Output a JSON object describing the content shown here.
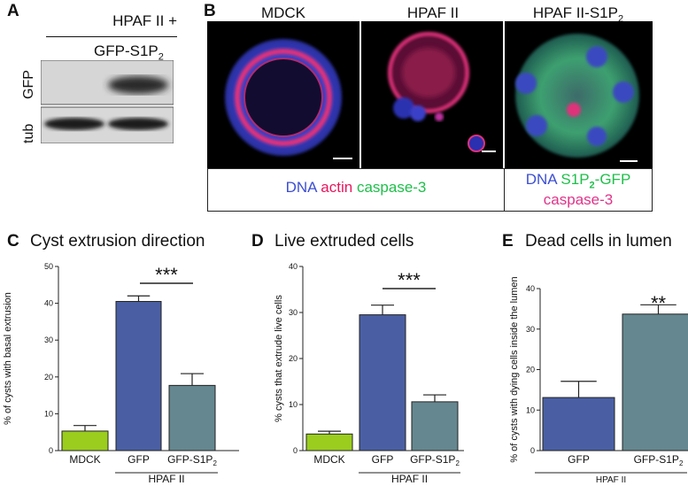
{
  "panels": {
    "A": {
      "letter": "A",
      "header_line1": "HPAF II +",
      "header_line2": "GFP-S1P",
      "header_sub": "2",
      "row_labels": [
        "GFP",
        "tub"
      ]
    },
    "B": {
      "letter": "B",
      "image_titles": [
        {
          "text": "MDCK",
          "sub": ""
        },
        {
          "text": "HPAF II",
          "sub": ""
        },
        {
          "text": "HPAF II-S1P",
          "sub": "2"
        }
      ],
      "legend_left": {
        "dna": "DNA",
        "actin": "actin",
        "caspase": "caspase-3"
      },
      "legend_right": {
        "dna": "DNA",
        "s1p": "S1P",
        "s1p_sub": "2",
        "gfp": "-GFP",
        "caspase": "caspase-3"
      }
    },
    "C": {
      "letter": "C"
    },
    "D": {
      "letter": "D"
    },
    "E": {
      "letter": "E"
    }
  },
  "colors": {
    "mdck_bar": "#9acd1e",
    "gfp_bar": "#4a5fa3",
    "s1p_bar": "#65878f",
    "dna_blue": "#3c4fd1",
    "actin_red": "#e8175d",
    "gfp_green": "#1fbf4a",
    "caspase_magenta": "#e0338a"
  },
  "chart_data": [
    {
      "id": "C",
      "type": "bar",
      "title": "Cyst extrusion direction",
      "ylabel": "% of cysts with basal extrusion",
      "categories": [
        "MDCK",
        "GFP",
        "GFP-S1P2"
      ],
      "values": [
        5.3,
        40.5,
        17.7
      ],
      "errors": [
        1.5,
        1.5,
        3.2
      ],
      "ylim": [
        0,
        50
      ],
      "yticks": [
        0,
        10,
        20,
        30,
        40,
        50
      ],
      "group_label": "HPAF II",
      "significance": "***"
    },
    {
      "id": "D",
      "type": "bar",
      "title": "Live extruded cells",
      "ylabel": "% cysts that extrude live cells",
      "categories": [
        "MDCK",
        "GFP",
        "GFP-S1P2"
      ],
      "values": [
        3.6,
        29.5,
        10.6
      ],
      "errors": [
        0.6,
        2.1,
        1.5
      ],
      "ylim": [
        0,
        40
      ],
      "yticks": [
        0,
        10,
        20,
        30,
        40
      ],
      "group_label": "HPAF II",
      "significance": "***"
    },
    {
      "id": "E",
      "type": "bar",
      "title": "Dead cells in lumen",
      "ylabel": "% of cysts with dying cells inside the lumen",
      "categories": [
        "GFP",
        "GFP-S1P2"
      ],
      "values": [
        13.1,
        33.7
      ],
      "errors": [
        4.0,
        2.3
      ],
      "ylim": [
        0,
        40
      ],
      "yticks": [
        0,
        10,
        20,
        30,
        40
      ],
      "group_label": "HPAF II",
      "significance": "**"
    }
  ]
}
